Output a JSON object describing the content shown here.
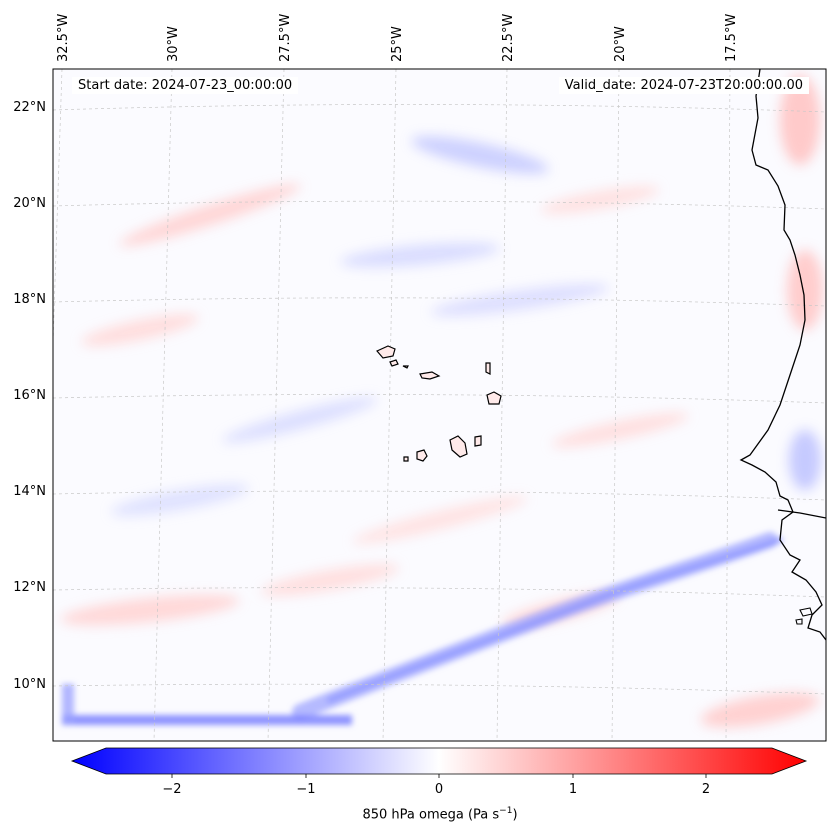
{
  "map": {
    "start_label": "Start date: 2024-07-23_00:00:00",
    "valid_label": "Valid_date: 2024-07-23T20:00:00.00",
    "lon_labels": [
      "32.5°W",
      "30°W",
      "27.5°W",
      "25°W",
      "22.5°W",
      "20°W",
      "17.5°W"
    ],
    "lat_labels": [
      "22°N",
      "20°N",
      "18°N",
      "16°N",
      "14°N",
      "12°N",
      "10°N"
    ],
    "colors": {
      "negative": "#0000ff",
      "zero": "#ffffff",
      "positive": "#ff0000",
      "coastline": "#000000",
      "gridline": "#c8c8c8"
    }
  },
  "colorbar": {
    "title": "850 hPa omega (Pa s",
    "title_sup": "−1",
    "title_end": ")",
    "ticks": [
      "−2",
      "−1",
      "0",
      "1",
      "2"
    ],
    "tick_values": [
      -2,
      -1,
      0,
      1,
      2
    ],
    "range": [
      -2.5,
      2.5
    ],
    "extend": "both"
  }
}
